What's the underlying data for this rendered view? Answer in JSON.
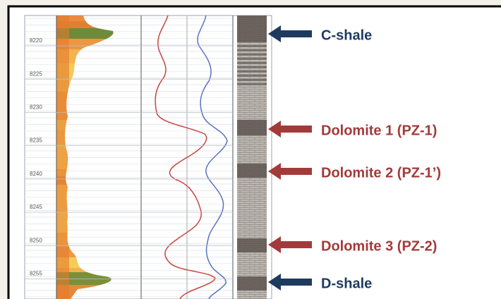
{
  "depth_ticks": [
    8220,
    8225,
    8230,
    8235,
    8240,
    8245,
    8250,
    8255
  ],
  "annotations": [
    {
      "label": "C-shale",
      "kind": "shale"
    },
    {
      "label": "Dolomite 1 (PZ-1)",
      "kind": "dolomite"
    },
    {
      "label": "Dolomite 2 (PZ-1’)",
      "kind": "dolomite"
    },
    {
      "label": "Dolomite 3 (PZ-2)",
      "kind": "dolomite"
    },
    {
      "label": "D-shale",
      "kind": "shale"
    }
  ]
}
